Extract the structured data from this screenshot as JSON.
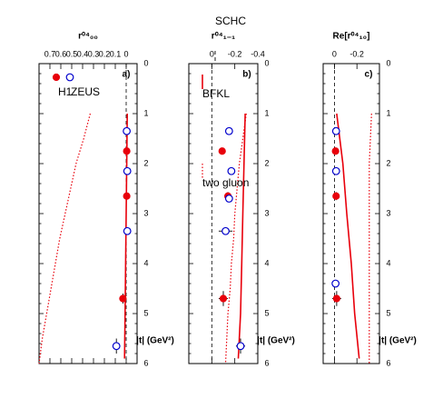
{
  "figure": {
    "legend": {
      "h1": "H1",
      "zeus": "ZEUS",
      "bfkl": "BFKL",
      "two_gluon": "two gluon",
      "schc": "SCHC"
    }
  },
  "chart_data": [
    {
      "type": "scatter",
      "panel_label": "a)",
      "xlabel": "|t| (GeV²)",
      "ylabel": "r⁰⁴₀₀",
      "xlim": [
        0,
        6
      ],
      "ylim": [
        -0.1,
        0.8
      ],
      "x_ticks": [
        0,
        1,
        2,
        3,
        4,
        5,
        6
      ],
      "y_ticks": [
        0,
        0.1,
        0.2,
        0.3,
        0.4,
        0.5,
        0.6,
        0.7
      ],
      "y_tick_labels": [
        "0",
        "0.1",
        "0.2",
        "0.3",
        "0.4",
        "0.5",
        "0.6",
        "0.7"
      ],
      "zero_line": 0,
      "series": [
        {
          "name": "H1",
          "marker": "filled-circle",
          "color": "#e8000b",
          "x": [
            1.75,
            2.65,
            4.7
          ],
          "y": [
            -0.005,
            -0.005,
            0.03
          ],
          "xerr": [
            0,
            0,
            0.1
          ],
          "yerr": [
            0.005,
            0.005,
            0.03
          ]
        },
        {
          "name": "ZEUS",
          "marker": "open-circle",
          "color": "#0000cc",
          "x": [
            1.35,
            2.15,
            3.35,
            5.65
          ],
          "y": [
            -0.005,
            -0.01,
            -0.01,
            0.09
          ],
          "xerr": [
            0,
            0,
            0.05,
            0.15
          ],
          "yerr": [
            0.005,
            0.005,
            0.02,
            0.03
          ]
        },
        {
          "name": "BFKL",
          "style": "solid",
          "color": "#e8000b",
          "x": [
            1.0,
            2.0,
            3.0,
            4.0,
            5.0,
            5.9
          ],
          "y": [
            -0.01,
            -0.005,
            0.0,
            0.005,
            0.01,
            0.015
          ]
        },
        {
          "name": "two gluon",
          "style": "dotted",
          "color": "#e8000b",
          "x": [
            1.0,
            1.5,
            2.0,
            2.5,
            3.0,
            3.5,
            4.0,
            4.5,
            5.0,
            5.5,
            6.0
          ],
          "y": [
            0.33,
            0.39,
            0.46,
            0.51,
            0.56,
            0.61,
            0.65,
            0.69,
            0.73,
            0.77,
            0.8
          ]
        }
      ]
    },
    {
      "type": "scatter",
      "panel_label": "b)",
      "xlabel": "|t| (GeV²)",
      "ylabel": "r⁰⁴₁₋₁",
      "xlim": [
        0,
        6
      ],
      "ylim": [
        -0.4,
        0.2
      ],
      "x_ticks": [
        0,
        1,
        2,
        3,
        4,
        5,
        6
      ],
      "y_ticks": [
        -0.4,
        -0.2,
        0
      ],
      "y_tick_labels": [
        "-0.4",
        "-0.2",
        "0"
      ],
      "zero_line": 0,
      "series": [
        {
          "name": "H1",
          "marker": "filled-circle",
          "color": "#e8000b",
          "x": [
            1.75,
            2.65,
            4.7
          ],
          "y": [
            -0.09,
            -0.14,
            -0.1
          ],
          "xerr": [
            0,
            0.08,
            0.15
          ],
          "yerr": [
            0.01,
            0.02,
            0.04
          ]
        },
        {
          "name": "ZEUS",
          "marker": "open-circle",
          "color": "#0000cc",
          "x": [
            1.35,
            2.15,
            2.7,
            3.35,
            5.65
          ],
          "y": [
            -0.15,
            -0.17,
            -0.15,
            -0.12,
            -0.25
          ],
          "xerr": [
            0,
            0,
            0,
            0.05,
            0.15
          ],
          "yerr": [
            0.02,
            0.02,
            0.02,
            0.06,
            0.04
          ]
        },
        {
          "name": "BFKL",
          "style": "solid",
          "color": "#e8000b",
          "x": [
            1.0,
            2.0,
            3.0,
            4.0,
            5.0,
            5.9
          ],
          "y": [
            -0.29,
            -0.28,
            -0.27,
            -0.26,
            -0.25,
            -0.23
          ]
        },
        {
          "name": "two gluon",
          "style": "dotted",
          "color": "#e8000b",
          "x": [
            1.0,
            1.5,
            2.0,
            2.5,
            3.0,
            3.5,
            4.0,
            4.5,
            5.0,
            5.5,
            6.0
          ],
          "y": [
            -0.3,
            -0.27,
            -0.24,
            -0.22,
            -0.2,
            -0.19,
            -0.17,
            -0.16,
            -0.14,
            -0.13,
            -0.12
          ]
        }
      ]
    },
    {
      "type": "scatter",
      "panel_label": "c)",
      "xlabel": "|t| (GeV²)",
      "ylabel": "Re[r⁰⁴₁₀]",
      "xlim": [
        0,
        6
      ],
      "ylim": [
        -0.4,
        0.1
      ],
      "x_ticks": [
        0,
        1,
        2,
        3,
        4,
        5,
        6
      ],
      "y_ticks": [
        -0.2,
        0
      ],
      "y_tick_labels": [
        "-0.2",
        "0"
      ],
      "zero_line": 0,
      "series": [
        {
          "name": "H1",
          "marker": "filled-circle",
          "color": "#e8000b",
          "x": [
            1.75,
            2.65,
            4.7
          ],
          "y": [
            -0.01,
            -0.015,
            -0.02
          ],
          "xerr": [
            0,
            0.08,
            0.15
          ],
          "yerr": [
            0.005,
            0.015,
            0.04
          ]
        },
        {
          "name": "ZEUS",
          "marker": "open-circle",
          "color": "#0000cc",
          "x": [
            1.35,
            2.15,
            4.4
          ],
          "y": [
            -0.015,
            -0.015,
            -0.01
          ],
          "xerr": [
            0,
            0,
            0.05
          ],
          "yerr": [
            0.005,
            0.005,
            0.01
          ]
        },
        {
          "name": "BFKL",
          "style": "solid",
          "color": "#e8000b",
          "x": [
            1.0,
            2.0,
            3.0,
            4.0,
            5.0,
            5.9
          ],
          "y": [
            -0.02,
            -0.075,
            -0.11,
            -0.15,
            -0.18,
            -0.22
          ]
        },
        {
          "name": "two gluon",
          "style": "dotted",
          "color": "#e8000b",
          "x": [
            1.0,
            2.0,
            3.0,
            4.0,
            5.0,
            6.0
          ],
          "y": [
            -0.33,
            -0.31,
            -0.31,
            -0.31,
            -0.31,
            -0.31
          ]
        }
      ]
    }
  ]
}
